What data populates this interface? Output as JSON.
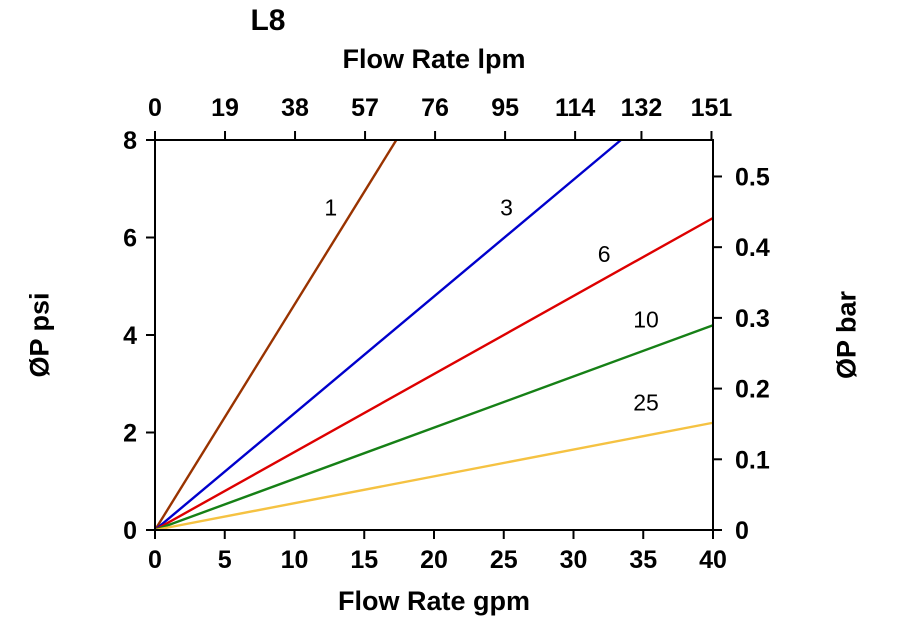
{
  "chart_data": {
    "type": "line",
    "title": "L8",
    "axes": {
      "top": {
        "label": "Flow Rate lpm",
        "ticks": [
          0,
          19,
          38,
          57,
          76,
          95,
          114,
          132,
          151
        ],
        "range": [
          0,
          151.416
        ]
      },
      "bottom": {
        "label": "Flow Rate gpm",
        "ticks": [
          0,
          5,
          10,
          15,
          20,
          25,
          30,
          35,
          40
        ],
        "range": [
          0,
          40
        ]
      },
      "left": {
        "label": "ØP psi",
        "ticks": [
          0,
          2,
          4,
          6,
          8
        ],
        "range": [
          0,
          8
        ]
      },
      "right": {
        "label": "ØP bar",
        "ticks": [
          0,
          0.1,
          0.2,
          0.3,
          0.4,
          0.5
        ],
        "psi_per_bar": 14.5038
      }
    },
    "plot": {
      "grid": false,
      "background": "#FFFFFF",
      "frame_color": "#000000"
    },
    "series": [
      {
        "name": "1",
        "color": "#993300",
        "points": [
          [
            0,
            0
          ],
          [
            17.3,
            8
          ]
        ],
        "label_at": [
          12.6,
          6.45
        ]
      },
      {
        "name": "3",
        "color": "#0000CC",
        "points": [
          [
            0,
            0
          ],
          [
            33.4,
            8
          ]
        ],
        "label_at": [
          25.2,
          6.45
        ]
      },
      {
        "name": "6",
        "color": "#DD0000",
        "points": [
          [
            0,
            0
          ],
          [
            40,
            6.4
          ]
        ],
        "label_at": [
          32.2,
          5.5
        ]
      },
      {
        "name": "10",
        "color": "#168016",
        "points": [
          [
            0,
            0
          ],
          [
            40,
            4.2
          ]
        ],
        "label_at": [
          35.2,
          4.15
        ]
      },
      {
        "name": "25",
        "color": "#F5C242",
        "points": [
          [
            0,
            0
          ],
          [
            40,
            2.2
          ]
        ],
        "label_at": [
          35.2,
          2.45
        ]
      }
    ]
  }
}
